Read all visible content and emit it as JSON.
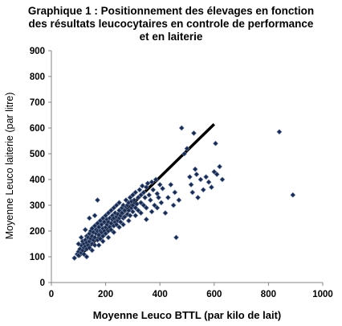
{
  "chart_data": {
    "type": "scatter",
    "title_lines": [
      "Graphique 1 : Positionnement des élevages en fonction",
      "des résultats leucocytaires en controle de performance",
      "et en laiterie"
    ],
    "xlabel": "Moyenne Leuco BTTL  (par kilo de lait)",
    "ylabel": "Moyenne Leuco laiterie (par litre)",
    "xlim": [
      0,
      1000
    ],
    "ylim": [
      0,
      900
    ],
    "x_ticks": [
      "0",
      "200",
      "400",
      "600",
      "800",
      "1000"
    ],
    "y_ticks": [
      "0",
      "100",
      "200",
      "300",
      "400",
      "500",
      "600",
      "700",
      "800",
      "900"
    ],
    "grid": false,
    "marker": "diamond",
    "marker_color": "#1b2a4a",
    "reference_line": {
      "x": [
        100,
        600
      ],
      "y": [
        100,
        615
      ],
      "color": "#000000"
    },
    "points": [
      [
        85,
        95
      ],
      [
        95,
        110
      ],
      [
        100,
        120
      ],
      [
        100,
        105
      ],
      [
        105,
        130
      ],
      [
        110,
        115
      ],
      [
        110,
        145
      ],
      [
        115,
        125
      ],
      [
        115,
        160
      ],
      [
        120,
        110
      ],
      [
        120,
        150
      ],
      [
        120,
        135
      ],
      [
        125,
        165
      ],
      [
        125,
        140
      ],
      [
        130,
        130
      ],
      [
        130,
        180
      ],
      [
        130,
        155
      ],
      [
        135,
        145
      ],
      [
        135,
        175
      ],
      [
        140,
        190
      ],
      [
        140,
        160
      ],
      [
        140,
        135
      ],
      [
        145,
        200
      ],
      [
        145,
        170
      ],
      [
        150,
        150
      ],
      [
        150,
        180
      ],
      [
        150,
        210
      ],
      [
        155,
        165
      ],
      [
        155,
        195
      ],
      [
        160,
        175
      ],
      [
        160,
        220
      ],
      [
        160,
        145
      ],
      [
        165,
        190
      ],
      [
        165,
        205
      ],
      [
        170,
        230
      ],
      [
        170,
        165
      ],
      [
        170,
        200
      ],
      [
        175,
        185
      ],
      [
        175,
        215
      ],
      [
        180,
        170
      ],
      [
        180,
        240
      ],
      [
        180,
        200
      ],
      [
        185,
        195
      ],
      [
        185,
        225
      ],
      [
        190,
        210
      ],
      [
        190,
        180
      ],
      [
        190,
        250
      ],
      [
        195,
        200
      ],
      [
        195,
        235
      ],
      [
        200,
        215
      ],
      [
        200,
        190
      ],
      [
        200,
        260
      ],
      [
        205,
        225
      ],
      [
        205,
        245
      ],
      [
        210,
        200
      ],
      [
        210,
        270
      ],
      [
        210,
        235
      ],
      [
        215,
        215
      ],
      [
        215,
        250
      ],
      [
        220,
        230
      ],
      [
        220,
        280
      ],
      [
        220,
        205
      ],
      [
        225,
        245
      ],
      [
        225,
        260
      ],
      [
        230,
        220
      ],
      [
        230,
        290
      ],
      [
        230,
        250
      ],
      [
        235,
        235
      ],
      [
        235,
        270
      ],
      [
        240,
        255
      ],
      [
        240,
        300
      ],
      [
        240,
        225
      ],
      [
        245,
        265
      ],
      [
        245,
        240
      ],
      [
        250,
        280
      ],
      [
        250,
        250
      ],
      [
        250,
        310
      ],
      [
        255,
        260
      ],
      [
        255,
        235
      ],
      [
        260,
        290
      ],
      [
        260,
        270
      ],
      [
        265,
        250
      ],
      [
        265,
        300
      ],
      [
        270,
        280
      ],
      [
        270,
        255
      ],
      [
        275,
        295
      ],
      [
        275,
        320
      ],
      [
        280,
        265
      ],
      [
        280,
        300
      ],
      [
        285,
        280
      ],
      [
        285,
        310
      ],
      [
        290,
        260
      ],
      [
        290,
        330
      ],
      [
        295,
        290
      ],
      [
        295,
        315
      ],
      [
        300,
        275
      ],
      [
        300,
        340
      ],
      [
        300,
        300
      ],
      [
        305,
        320
      ],
      [
        310,
        290
      ],
      [
        310,
        350
      ],
      [
        315,
        305
      ],
      [
        320,
        330
      ],
      [
        320,
        280
      ],
      [
        325,
        360
      ],
      [
        330,
        310
      ],
      [
        330,
        340
      ],
      [
        335,
        375
      ],
      [
        340,
        300
      ],
      [
        340,
        350
      ],
      [
        345,
        330
      ],
      [
        350,
        370
      ],
      [
        350,
        290
      ],
      [
        355,
        385
      ],
      [
        360,
        340
      ],
      [
        365,
        320
      ],
      [
        370,
        390
      ],
      [
        375,
        360
      ],
      [
        380,
        300
      ],
      [
        385,
        400
      ],
      [
        390,
        345
      ],
      [
        395,
        330
      ],
      [
        400,
        380
      ],
      [
        405,
        310
      ],
      [
        410,
        365
      ],
      [
        420,
        270
      ],
      [
        430,
        330
      ],
      [
        440,
        380
      ],
      [
        450,
        300
      ],
      [
        455,
        350
      ],
      [
        460,
        175
      ],
      [
        470,
        320
      ],
      [
        480,
        600
      ],
      [
        490,
        500
      ],
      [
        500,
        520
      ],
      [
        510,
        410
      ],
      [
        515,
        380
      ],
      [
        520,
        350
      ],
      [
        525,
        580
      ],
      [
        530,
        440
      ],
      [
        535,
        420
      ],
      [
        540,
        330
      ],
      [
        550,
        400
      ],
      [
        560,
        360
      ],
      [
        570,
        410
      ],
      [
        580,
        390
      ],
      [
        590,
        370
      ],
      [
        600,
        430
      ],
      [
        605,
        540
      ],
      [
        610,
        420
      ],
      [
        620,
        450
      ],
      [
        630,
        400
      ],
      [
        170,
        320
      ],
      [
        160,
        260
      ],
      [
        140,
        250
      ],
      [
        125,
        205
      ],
      [
        110,
        175
      ],
      [
        100,
        150
      ],
      [
        130,
        100
      ],
      [
        150,
        125
      ],
      [
        175,
        145
      ],
      [
        190,
        160
      ],
      [
        210,
        175
      ],
      [
        230,
        195
      ],
      [
        250,
        215
      ],
      [
        265,
        225
      ],
      [
        285,
        240
      ],
      [
        310,
        260
      ],
      [
        330,
        270
      ],
      [
        350,
        245
      ],
      [
        370,
        275
      ],
      [
        390,
        290
      ],
      [
        840,
        585
      ],
      [
        890,
        340
      ]
    ]
  }
}
